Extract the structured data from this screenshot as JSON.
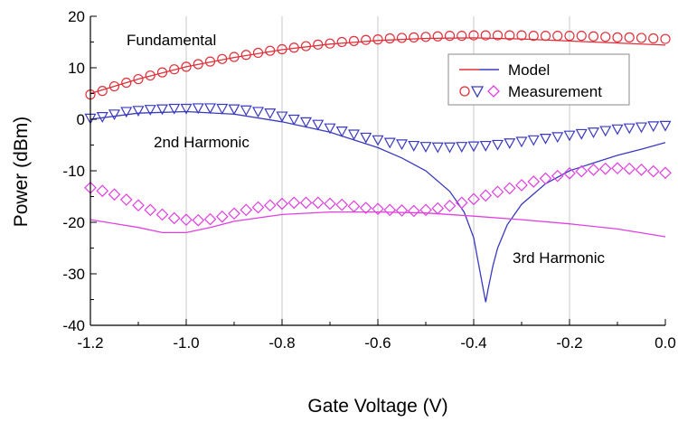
{
  "chart_data": {
    "type": "line",
    "xlabel": "Gate Voltage (V)",
    "ylabel": "Power (dBm)",
    "xlim": [
      -1.2,
      0.0
    ],
    "ylim": [
      -40,
      20
    ],
    "x_ticks": [
      -1.2,
      -1.0,
      -0.8,
      -0.6,
      -0.4,
      -0.2,
      0.0
    ],
    "x_tick_labels": [
      "-1.2",
      "-1.0",
      "-0.8",
      "-0.6",
      "-0.4",
      "-0.2",
      "0.0"
    ],
    "y_ticks": [
      -40,
      -30,
      -20,
      -10,
      0,
      10,
      20
    ],
    "y_tick_labels": [
      "-40",
      "-30",
      "-20",
      "-10",
      "0",
      "10",
      "20"
    ],
    "grid": "vertical",
    "legend": {
      "placement": "top-right",
      "entries": [
        {
          "label": "Model",
          "style": "lines",
          "colors": [
            "#e0303a",
            "#3a3ac0"
          ]
        },
        {
          "label": "Measurement",
          "style": "markers",
          "markers": [
            "circle",
            "triangle-down",
            "diamond"
          ],
          "colors": [
            "#e0303a",
            "#3a3ac0",
            "#e040e0"
          ]
        }
      ]
    },
    "annotations": [
      {
        "text": "Fundamental",
        "x": -1.15,
        "y": 15.5
      },
      {
        "text": "2nd Harmonic",
        "x": -1.08,
        "y": -3.5
      },
      {
        "text": "3rd Harmonic",
        "x": -0.37,
        "y": -27
      }
    ],
    "series": [
      {
        "kind": "model",
        "color": "#e0303a",
        "x": [
          -1.2,
          -1.1,
          -1.0,
          -0.9,
          -0.8,
          -0.7,
          -0.6,
          -0.5,
          -0.4,
          -0.3,
          -0.2,
          -0.1,
          0.0
        ],
        "y": [
          5.0,
          7.8,
          10.2,
          12.0,
          13.5,
          14.6,
          15.3,
          15.7,
          15.8,
          15.6,
          15.2,
          14.8,
          14.4
        ]
      },
      {
        "kind": "model",
        "color": "#3a3ac0",
        "x": [
          -1.2,
          -1.1,
          -1.0,
          -0.9,
          -0.8,
          -0.7,
          -0.6,
          -0.55,
          -0.5,
          -0.45,
          -0.42,
          -0.4,
          -0.39,
          -0.38,
          -0.375,
          -0.37,
          -0.36,
          -0.35,
          -0.33,
          -0.3,
          -0.25,
          -0.2,
          -0.15,
          -0.1,
          -0.05,
          0.0
        ],
        "y": [
          0.0,
          1.2,
          1.5,
          1.0,
          -0.5,
          -2.5,
          -5.5,
          -7.5,
          -10.0,
          -14.0,
          -18.0,
          -23.0,
          -28.0,
          -33.0,
          -35.5,
          -33.0,
          -28.5,
          -25.0,
          -20.5,
          -16.5,
          -12.5,
          -10.0,
          -8.5,
          -7.0,
          -5.8,
          -4.5
        ]
      },
      {
        "kind": "model",
        "color": "#e040e0",
        "x": [
          -1.2,
          -1.1,
          -1.05,
          -1.0,
          -0.95,
          -0.9,
          -0.8,
          -0.7,
          -0.6,
          -0.5,
          -0.4,
          -0.3,
          -0.2,
          -0.1,
          0.0
        ],
        "y": [
          -19.5,
          -21.0,
          -22.0,
          -22.0,
          -21.0,
          -19.8,
          -18.5,
          -18.0,
          -18.0,
          -18.2,
          -18.8,
          -19.5,
          -20.3,
          -21.3,
          -22.8
        ]
      },
      {
        "kind": "measurement",
        "marker": "circle",
        "color": "#e0303a",
        "x": [
          -1.2,
          -1.175,
          -1.15,
          -1.125,
          -1.1,
          -1.075,
          -1.05,
          -1.025,
          -1.0,
          -0.975,
          -0.95,
          -0.925,
          -0.9,
          -0.875,
          -0.85,
          -0.825,
          -0.8,
          -0.775,
          -0.75,
          -0.725,
          -0.7,
          -0.675,
          -0.65,
          -0.625,
          -0.6,
          -0.575,
          -0.55,
          -0.525,
          -0.5,
          -0.475,
          -0.45,
          -0.425,
          -0.4,
          -0.375,
          -0.35,
          -0.325,
          -0.3,
          -0.275,
          -0.25,
          -0.225,
          -0.2,
          -0.175,
          -0.15,
          -0.125,
          -0.1,
          -0.075,
          -0.05,
          -0.025,
          0.0
        ],
        "y": [
          4.8,
          5.5,
          6.4,
          7.1,
          7.8,
          8.5,
          9.1,
          9.7,
          10.2,
          10.7,
          11.2,
          11.7,
          12.1,
          12.5,
          12.9,
          13.3,
          13.6,
          13.9,
          14.2,
          14.5,
          14.7,
          15.0,
          15.2,
          15.4,
          15.5,
          15.7,
          15.8,
          15.9,
          16.0,
          16.1,
          16.2,
          16.2,
          16.3,
          16.3,
          16.3,
          16.3,
          16.3,
          16.2,
          16.2,
          16.2,
          16.2,
          16.2,
          16.1,
          16.0,
          15.9,
          15.9,
          15.8,
          15.7,
          15.6
        ]
      },
      {
        "kind": "measurement",
        "marker": "triangle-down",
        "color": "#3a3ac0",
        "x": [
          -1.2,
          -1.175,
          -1.15,
          -1.125,
          -1.1,
          -1.075,
          -1.05,
          -1.025,
          -1.0,
          -0.975,
          -0.95,
          -0.925,
          -0.9,
          -0.875,
          -0.85,
          -0.825,
          -0.8,
          -0.775,
          -0.75,
          -0.725,
          -0.7,
          -0.675,
          -0.65,
          -0.625,
          -0.6,
          -0.575,
          -0.55,
          -0.525,
          -0.5,
          -0.475,
          -0.45,
          -0.425,
          -0.4,
          -0.375,
          -0.35,
          -0.325,
          -0.3,
          -0.275,
          -0.25,
          -0.225,
          -0.2,
          -0.175,
          -0.15,
          -0.125,
          -0.1,
          -0.075,
          -0.05,
          -0.025,
          0.0
        ],
        "y": [
          0.2,
          0.5,
          1.0,
          1.5,
          1.7,
          1.9,
          2.0,
          2.1,
          2.1,
          2.2,
          2.2,
          2.1,
          2.0,
          1.8,
          1.5,
          1.2,
          0.6,
          0.0,
          -0.5,
          -1.0,
          -1.7,
          -2.3,
          -2.9,
          -3.5,
          -4.0,
          -4.5,
          -4.8,
          -5.1,
          -5.3,
          -5.4,
          -5.4,
          -5.3,
          -5.2,
          -5.1,
          -4.9,
          -4.6,
          -4.3,
          -4.0,
          -3.7,
          -3.4,
          -3.1,
          -2.8,
          -2.5,
          -2.2,
          -1.9,
          -1.7,
          -1.5,
          -1.3,
          -1.2
        ]
      },
      {
        "kind": "measurement",
        "marker": "diamond",
        "color": "#e040e0",
        "x": [
          -1.2,
          -1.175,
          -1.15,
          -1.125,
          -1.1,
          -1.075,
          -1.05,
          -1.025,
          -1.0,
          -0.975,
          -0.95,
          -0.925,
          -0.9,
          -0.875,
          -0.85,
          -0.825,
          -0.8,
          -0.775,
          -0.75,
          -0.725,
          -0.7,
          -0.675,
          -0.65,
          -0.625,
          -0.6,
          -0.575,
          -0.55,
          -0.525,
          -0.5,
          -0.475,
          -0.45,
          -0.425,
          -0.4,
          -0.375,
          -0.35,
          -0.325,
          -0.3,
          -0.275,
          -0.25,
          -0.225,
          -0.2,
          -0.175,
          -0.15,
          -0.125,
          -0.1,
          -0.075,
          -0.05,
          -0.025,
          0.0
        ],
        "y": [
          -13.3,
          -13.9,
          -14.6,
          -15.6,
          -16.7,
          -17.6,
          -18.5,
          -19.2,
          -19.5,
          -19.6,
          -19.4,
          -18.9,
          -18.3,
          -17.6,
          -17.1,
          -16.7,
          -16.4,
          -16.2,
          -16.2,
          -16.2,
          -16.4,
          -16.6,
          -16.9,
          -17.2,
          -17.4,
          -17.6,
          -17.7,
          -17.8,
          -17.6,
          -17.3,
          -16.8,
          -16.2,
          -15.5,
          -14.8,
          -14.1,
          -13.4,
          -12.8,
          -12.1,
          -11.5,
          -11.0,
          -10.5,
          -10.1,
          -9.8,
          -9.6,
          -9.5,
          -9.6,
          -9.8,
          -10.1,
          -10.4
        ]
      }
    ]
  }
}
